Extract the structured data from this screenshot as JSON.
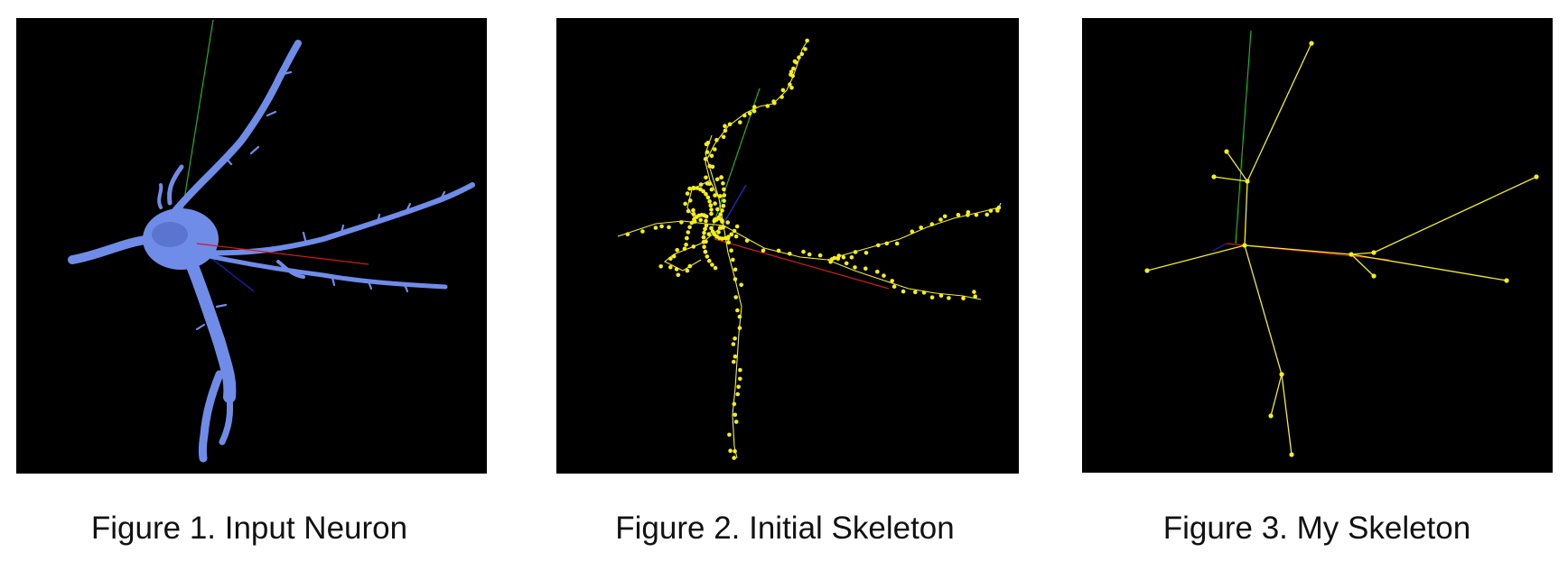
{
  "figures": [
    {
      "caption": "Figure 1. Input Neuron"
    },
    {
      "caption": "Figure 2. Initial Skeleton"
    },
    {
      "caption": "Figure 3. My Skeleton"
    }
  ],
  "colors": {
    "background": "#000000",
    "neuron_mesh": "#6f8ce8",
    "skeleton": "#f4ee1c",
    "axis_x": "#d11a1a",
    "axis_y": "#1bb31b",
    "axis_z": "#1a1a9c"
  }
}
